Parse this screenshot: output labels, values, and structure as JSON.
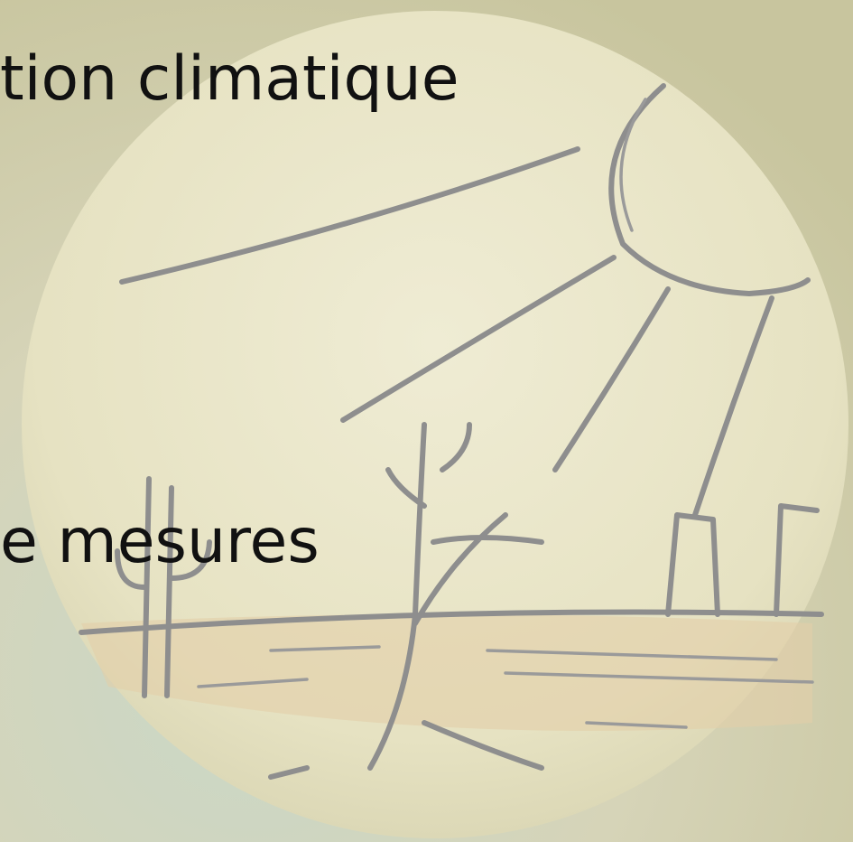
{
  "slide": {
    "lines": [
      "tion climatique",
      "e mesures"
    ]
  }
}
